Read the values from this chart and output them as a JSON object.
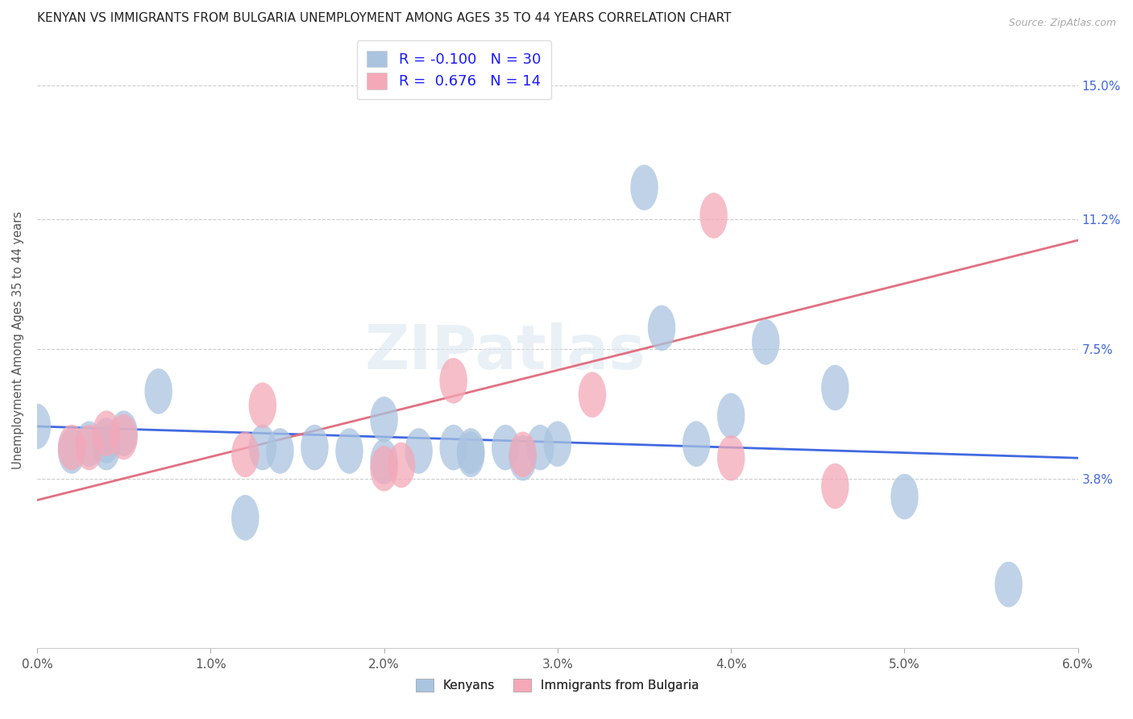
{
  "title": "KENYAN VS IMMIGRANTS FROM BULGARIA UNEMPLOYMENT AMONG AGES 35 TO 44 YEARS CORRELATION CHART",
  "source": "Source: ZipAtlas.com",
  "xlabel_ticks": [
    "0.0%",
    "1.0%",
    "2.0%",
    "3.0%",
    "4.0%",
    "5.0%",
    "6.0%"
  ],
  "ylabel_label": "Unemployment Among Ages 35 to 44 years",
  "ylabel_ticks_values": [
    0.038,
    0.075,
    0.112,
    0.15
  ],
  "ylabel_ticks_labels": [
    "3.8%",
    "7.5%",
    "11.2%",
    "15.0%"
  ],
  "xlim": [
    0.0,
    0.06
  ],
  "ylim": [
    -0.01,
    0.165
  ],
  "kenyan_color": "#aac4e0",
  "bulgaria_color": "#f4a8b8",
  "line_kenya_color": "#4169e1",
  "line_bulgaria_color": "#e07080",
  "legend_r_kenya": "-0.100",
  "legend_n_kenya": "30",
  "legend_r_bulgaria": "0.676",
  "legend_n_bulgaria": "14",
  "watermark": "ZIPatlas",
  "kenyan_points_x": [
    0.0,
    0.002,
    0.003,
    0.004,
    0.004,
    0.005,
    0.007,
    0.012,
    0.013,
    0.014,
    0.016,
    0.018,
    0.02,
    0.02,
    0.022,
    0.024,
    0.025,
    0.025,
    0.027,
    0.028,
    0.029,
    0.03,
    0.035,
    0.036,
    0.038,
    0.04,
    0.042,
    0.046,
    0.05,
    0.056
  ],
  "kenyan_points_y": [
    0.053,
    0.046,
    0.048,
    0.047,
    0.049,
    0.051,
    0.063,
    0.027,
    0.047,
    0.046,
    0.047,
    0.046,
    0.043,
    0.055,
    0.046,
    0.047,
    0.046,
    0.045,
    0.047,
    0.044,
    0.047,
    0.048,
    0.121,
    0.081,
    0.048,
    0.056,
    0.077,
    0.064,
    0.033,
    0.008
  ],
  "bulgaria_points_x": [
    0.002,
    0.003,
    0.004,
    0.005,
    0.012,
    0.013,
    0.02,
    0.021,
    0.024,
    0.028,
    0.032,
    0.039,
    0.04,
    0.046
  ],
  "bulgaria_points_y": [
    0.047,
    0.047,
    0.051,
    0.05,
    0.045,
    0.059,
    0.041,
    0.042,
    0.066,
    0.045,
    0.062,
    0.113,
    0.044,
    0.036
  ],
  "kenya_trend_x": [
    0.0,
    0.06
  ],
  "kenya_trend_y": [
    0.053,
    0.044
  ],
  "bulgaria_trend_x": [
    0.0,
    0.06
  ],
  "bulgaria_trend_y": [
    0.032,
    0.106
  ]
}
